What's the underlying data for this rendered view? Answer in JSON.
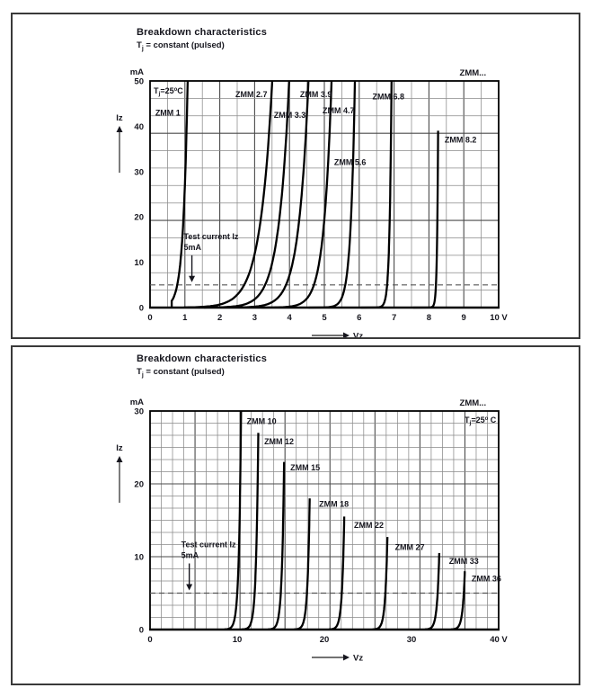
{
  "panels": [
    {
      "title": "Breakdown characteristics",
      "subtitle": {
        "pre": "T",
        "sub": "j",
        "rest": " = constant (pulsed)"
      }
    },
    {
      "title": "Breakdown characteristics",
      "subtitle": {
        "pre": "T",
        "sub": "j",
        "rest": " = constant (pulsed)"
      }
    }
  ],
  "chart_data": [
    {
      "type": "line",
      "title": "Breakdown characteristics",
      "condition": "Tj = constant (pulsed)",
      "corner_label": "ZMM...",
      "temp_label": {
        "pre": "T",
        "sub": "j",
        "mid": "=25",
        "sup": "o",
        "post": "C"
      },
      "temp_label_pos": "top-left",
      "x_axis": {
        "label": "Vz",
        "min": 0,
        "max": 10,
        "tick_values": [
          0,
          1,
          2,
          3,
          4,
          5,
          6,
          7,
          8,
          9,
          10
        ],
        "tick_labels": [
          "0",
          "1",
          "2",
          "3",
          "4",
          "5",
          "6",
          "7",
          "8",
          "9",
          "10 V"
        ]
      },
      "y_axis": {
        "label": "Iz",
        "unit": "mA",
        "min": 0,
        "max": 50,
        "tick_values": [
          0,
          10,
          20,
          30,
          40,
          50
        ],
        "tick_labels": [
          "0",
          "10",
          "20",
          "30",
          "40",
          "50"
        ]
      },
      "test_current": {
        "lines": [
          "Test current Iz",
          "5mA"
        ],
        "value_mA": 5,
        "arrow_v": 1.2
      },
      "series": [
        {
          "name": "ZMM 1",
          "vz_at_5mA": 0.78,
          "slope": 0.13,
          "i_max": 50,
          "tail_v": 0.62,
          "label_v": 0.15,
          "label_i": 43
        },
        {
          "name": "ZMM 2.7",
          "vz_at_5mA": 2.7,
          "slope": 0.35,
          "i_max": 50,
          "tail_v": 1.0,
          "label_v": 2.45,
          "label_i": 47
        },
        {
          "name": "ZMM 3.3",
          "vz_at_5mA": 3.3,
          "slope": 0.3,
          "i_max": 50,
          "tail_v": 1.55,
          "label_v": 3.55,
          "label_i": 42.5
        },
        {
          "name": "ZMM 3.9",
          "vz_at_5mA": 3.9,
          "slope": 0.28,
          "i_max": 50,
          "tail_v": 2.4,
          "label_v": 4.3,
          "label_i": 47
        },
        {
          "name": "ZMM 4.7",
          "vz_at_5mA": 4.7,
          "slope": 0.22,
          "i_max": 50,
          "tail_v": 3.2,
          "label_v": 4.95,
          "label_i": 43.5
        },
        {
          "name": "ZMM 5.6",
          "vz_at_5mA": 5.6,
          "slope": 0.12,
          "i_max": 50,
          "tail_v": 4.55,
          "label_v": 5.28,
          "label_i": 32
        },
        {
          "name": "ZMM 6.8",
          "vz_at_5mA": 6.8,
          "slope": 0.055,
          "i_max": 50,
          "tail_v": 6.05,
          "label_v": 6.38,
          "label_i": 46.5
        },
        {
          "name": "ZMM 8.2",
          "vz_at_5mA": 8.2,
          "slope": 0.03,
          "i_max": 39,
          "tail_v": 7.55,
          "label_v": 8.45,
          "label_i": 37
        }
      ]
    },
    {
      "type": "line",
      "title": "Breakdown characteristics",
      "condition": "Tj = constant (pulsed)",
      "corner_label": "ZMM...",
      "temp_label": {
        "pre": "T",
        "sub": "j",
        "mid": "=25",
        "sup": "o",
        "post": " C"
      },
      "temp_label_pos": "top-right",
      "x_axis": {
        "label": "Vz",
        "min": 0,
        "max": 40,
        "tick_values": [
          0,
          10,
          20,
          30,
          40
        ],
        "tick_labels": [
          "0",
          "10",
          "20",
          "30",
          "40 V"
        ]
      },
      "y_axis": {
        "label": "Iz",
        "unit": "mA",
        "min": 0,
        "max": 30,
        "tick_values": [
          0,
          10,
          20,
          30
        ],
        "tick_labels": [
          "0",
          "10",
          "20",
          "30"
        ]
      },
      "test_current": {
        "lines": [
          "Test current Iz",
          "5mA"
        ],
        "value_mA": 5,
        "arrow_v": 4.5
      },
      "series": [
        {
          "name": "ZMM 10",
          "vz_at_5mA": 10,
          "slope": 0.25,
          "i_max": 30,
          "tail_v": 8.65,
          "label_v": 11.1,
          "label_i": 28.6
        },
        {
          "name": "ZMM 12",
          "vz_at_5mA": 12,
          "slope": 0.25,
          "i_max": 27,
          "tail_v": 10.65,
          "label_v": 13.1,
          "label_i": 25.8
        },
        {
          "name": "ZMM 15",
          "vz_at_5mA": 15,
          "slope": 0.25,
          "i_max": 23,
          "tail_v": 13.65,
          "label_v": 16.1,
          "label_i": 22.2
        },
        {
          "name": "ZMM 18",
          "vz_at_5mA": 18,
          "slope": 0.25,
          "i_max": 18,
          "tail_v": 16.65,
          "label_v": 19.4,
          "label_i": 17.2
        },
        {
          "name": "ZMM 22",
          "vz_at_5mA": 22,
          "slope": 0.25,
          "i_max": 15.5,
          "tail_v": 20.65,
          "label_v": 23.4,
          "label_i": 14.3
        },
        {
          "name": "ZMM 27",
          "vz_at_5mA": 27,
          "slope": 0.25,
          "i_max": 12.7,
          "tail_v": 25.65,
          "label_v": 28.1,
          "label_i": 11.3
        },
        {
          "name": "ZMM 33",
          "vz_at_5mA": 33,
          "slope": 0.25,
          "i_max": 10.5,
          "tail_v": 31.65,
          "label_v": 34.3,
          "label_i": 9.4
        },
        {
          "name": "ZMM 36",
          "vz_at_5mA": 36,
          "slope": 0.25,
          "i_max": 8,
          "tail_v": 34.65,
          "label_v": 36.9,
          "label_i": 7.0
        }
      ]
    }
  ]
}
